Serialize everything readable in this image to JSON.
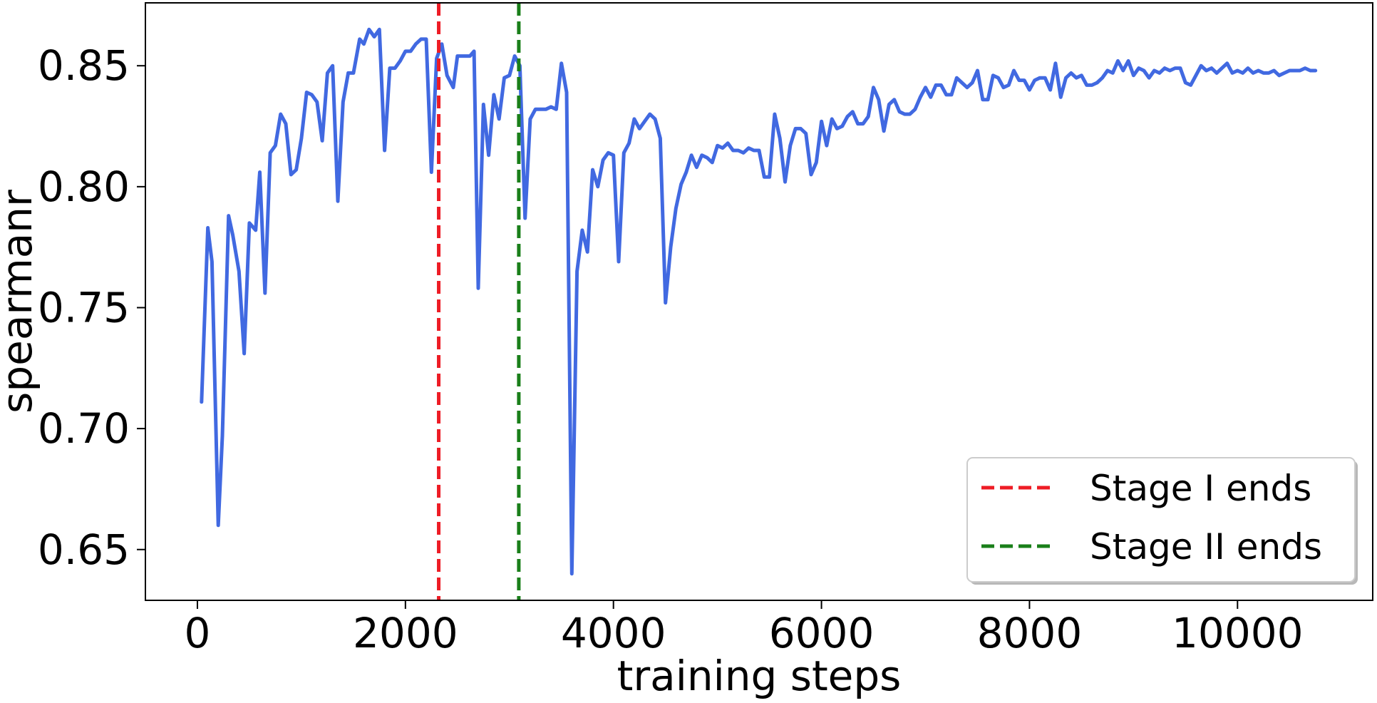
{
  "chart_data": {
    "type": "line",
    "title": "",
    "xlabel": "training steps",
    "ylabel": "spearmanr",
    "xlim": [
      -500,
      11300
    ],
    "ylim": [
      0.629,
      0.876
    ],
    "x_ticks": [
      0,
      2000,
      4000,
      6000,
      8000,
      10000
    ],
    "x_tick_labels": [
      "0",
      "2000",
      "4000",
      "6000",
      "8000",
      "10000"
    ],
    "y_ticks": [
      0.65,
      0.7,
      0.75,
      0.8,
      0.85
    ],
    "y_tick_labels": [
      "0.65",
      "0.70",
      "0.75",
      "0.80",
      "0.85"
    ],
    "grid": false,
    "legend_position": "bottom-right",
    "series": [
      {
        "color": "#4169E1",
        "points": [
          [
            40,
            0.711
          ],
          [
            100,
            0.783
          ],
          [
            140,
            0.769
          ],
          [
            200,
            0.66
          ],
          [
            240,
            0.697
          ],
          [
            300,
            0.788
          ],
          [
            340,
            0.78
          ],
          [
            400,
            0.765
          ],
          [
            450,
            0.731
          ],
          [
            500,
            0.785
          ],
          [
            560,
            0.782
          ],
          [
            600,
            0.806
          ],
          [
            650,
            0.756
          ],
          [
            700,
            0.814
          ],
          [
            750,
            0.817
          ],
          [
            800,
            0.83
          ],
          [
            850,
            0.826
          ],
          [
            900,
            0.805
          ],
          [
            950,
            0.807
          ],
          [
            1000,
            0.82
          ],
          [
            1050,
            0.839
          ],
          [
            1100,
            0.838
          ],
          [
            1150,
            0.835
          ],
          [
            1200,
            0.819
          ],
          [
            1250,
            0.847
          ],
          [
            1300,
            0.85
          ],
          [
            1350,
            0.794
          ],
          [
            1400,
            0.835
          ],
          [
            1450,
            0.847
          ],
          [
            1500,
            0.847
          ],
          [
            1560,
            0.861
          ],
          [
            1600,
            0.859
          ],
          [
            1650,
            0.865
          ],
          [
            1700,
            0.862
          ],
          [
            1750,
            0.865
          ],
          [
            1800,
            0.815
          ],
          [
            1850,
            0.849
          ],
          [
            1900,
            0.849
          ],
          [
            1950,
            0.852
          ],
          [
            2000,
            0.856
          ],
          [
            2050,
            0.856
          ],
          [
            2100,
            0.859
          ],
          [
            2150,
            0.861
          ],
          [
            2200,
            0.861
          ],
          [
            2250,
            0.806
          ],
          [
            2300,
            0.853
          ],
          [
            2350,
            0.859
          ],
          [
            2400,
            0.846
          ],
          [
            2460,
            0.841
          ],
          [
            2500,
            0.854
          ],
          [
            2560,
            0.854
          ],
          [
            2620,
            0.854
          ],
          [
            2660,
            0.856
          ],
          [
            2700,
            0.758
          ],
          [
            2750,
            0.834
          ],
          [
            2800,
            0.813
          ],
          [
            2850,
            0.838
          ],
          [
            2900,
            0.828
          ],
          [
            2950,
            0.845
          ],
          [
            3000,
            0.846
          ],
          [
            3050,
            0.854
          ],
          [
            3100,
            0.85
          ],
          [
            3150,
            0.787
          ],
          [
            3200,
            0.828
          ],
          [
            3250,
            0.832
          ],
          [
            3300,
            0.832
          ],
          [
            3350,
            0.832
          ],
          [
            3400,
            0.833
          ],
          [
            3450,
            0.832
          ],
          [
            3500,
            0.851
          ],
          [
            3550,
            0.839
          ],
          [
            3600,
            0.64
          ],
          [
            3650,
            0.765
          ],
          [
            3700,
            0.782
          ],
          [
            3750,
            0.773
          ],
          [
            3800,
            0.807
          ],
          [
            3850,
            0.8
          ],
          [
            3900,
            0.811
          ],
          [
            3950,
            0.814
          ],
          [
            4000,
            0.813
          ],
          [
            4050,
            0.769
          ],
          [
            4100,
            0.814
          ],
          [
            4150,
            0.818
          ],
          [
            4200,
            0.828
          ],
          [
            4250,
            0.824
          ],
          [
            4300,
            0.827
          ],
          [
            4350,
            0.83
          ],
          [
            4400,
            0.828
          ],
          [
            4450,
            0.82
          ],
          [
            4500,
            0.752
          ],
          [
            4550,
            0.775
          ],
          [
            4600,
            0.791
          ],
          [
            4650,
            0.801
          ],
          [
            4700,
            0.806
          ],
          [
            4750,
            0.813
          ],
          [
            4800,
            0.808
          ],
          [
            4850,
            0.813
          ],
          [
            4900,
            0.812
          ],
          [
            4950,
            0.81
          ],
          [
            5000,
            0.817
          ],
          [
            5050,
            0.816
          ],
          [
            5100,
            0.818
          ],
          [
            5150,
            0.815
          ],
          [
            5200,
            0.815
          ],
          [
            5250,
            0.814
          ],
          [
            5300,
            0.816
          ],
          [
            5350,
            0.815
          ],
          [
            5400,
            0.815
          ],
          [
            5450,
            0.804
          ],
          [
            5500,
            0.804
          ],
          [
            5550,
            0.83
          ],
          [
            5600,
            0.82
          ],
          [
            5650,
            0.802
          ],
          [
            5700,
            0.817
          ],
          [
            5750,
            0.824
          ],
          [
            5800,
            0.824
          ],
          [
            5850,
            0.822
          ],
          [
            5900,
            0.805
          ],
          [
            5950,
            0.81
          ],
          [
            6000,
            0.827
          ],
          [
            6050,
            0.817
          ],
          [
            6100,
            0.828
          ],
          [
            6150,
            0.824
          ],
          [
            6200,
            0.825
          ],
          [
            6250,
            0.829
          ],
          [
            6300,
            0.831
          ],
          [
            6350,
            0.826
          ],
          [
            6400,
            0.826
          ],
          [
            6450,
            0.829
          ],
          [
            6500,
            0.841
          ],
          [
            6550,
            0.836
          ],
          [
            6600,
            0.823
          ],
          [
            6650,
            0.834
          ],
          [
            6700,
            0.836
          ],
          [
            6750,
            0.831
          ],
          [
            6800,
            0.83
          ],
          [
            6850,
            0.83
          ],
          [
            6900,
            0.832
          ],
          [
            6950,
            0.837
          ],
          [
            7000,
            0.841
          ],
          [
            7050,
            0.837
          ],
          [
            7100,
            0.842
          ],
          [
            7150,
            0.842
          ],
          [
            7200,
            0.838
          ],
          [
            7250,
            0.838
          ],
          [
            7300,
            0.845
          ],
          [
            7350,
            0.843
          ],
          [
            7400,
            0.841
          ],
          [
            7450,
            0.843
          ],
          [
            7500,
            0.848
          ],
          [
            7550,
            0.836
          ],
          [
            7600,
            0.836
          ],
          [
            7650,
            0.846
          ],
          [
            7700,
            0.845
          ],
          [
            7750,
            0.841
          ],
          [
            7800,
            0.842
          ],
          [
            7850,
            0.848
          ],
          [
            7900,
            0.844
          ],
          [
            7950,
            0.844
          ],
          [
            8000,
            0.84
          ],
          [
            8050,
            0.844
          ],
          [
            8100,
            0.845
          ],
          [
            8150,
            0.845
          ],
          [
            8200,
            0.84
          ],
          [
            8250,
            0.851
          ],
          [
            8300,
            0.837
          ],
          [
            8350,
            0.845
          ],
          [
            8400,
            0.847
          ],
          [
            8450,
            0.845
          ],
          [
            8500,
            0.846
          ],
          [
            8550,
            0.842
          ],
          [
            8600,
            0.842
          ],
          [
            8650,
            0.843
          ],
          [
            8700,
            0.845
          ],
          [
            8750,
            0.848
          ],
          [
            8800,
            0.847
          ],
          [
            8850,
            0.852
          ],
          [
            8900,
            0.848
          ],
          [
            8950,
            0.852
          ],
          [
            9000,
            0.846
          ],
          [
            9050,
            0.849
          ],
          [
            9100,
            0.848
          ],
          [
            9150,
            0.845
          ],
          [
            9200,
            0.848
          ],
          [
            9250,
            0.847
          ],
          [
            9300,
            0.849
          ],
          [
            9350,
            0.848
          ],
          [
            9400,
            0.849
          ],
          [
            9450,
            0.849
          ],
          [
            9500,
            0.843
          ],
          [
            9550,
            0.842
          ],
          [
            9600,
            0.846
          ],
          [
            9650,
            0.85
          ],
          [
            9700,
            0.848
          ],
          [
            9750,
            0.849
          ],
          [
            9800,
            0.847
          ],
          [
            9850,
            0.849
          ],
          [
            9900,
            0.851
          ],
          [
            9950,
            0.847
          ],
          [
            10000,
            0.848
          ],
          [
            10050,
            0.847
          ],
          [
            10100,
            0.849
          ],
          [
            10150,
            0.847
          ],
          [
            10200,
            0.848
          ],
          [
            10250,
            0.847
          ],
          [
            10300,
            0.847
          ],
          [
            10350,
            0.848
          ],
          [
            10400,
            0.846
          ],
          [
            10450,
            0.847
          ],
          [
            10500,
            0.848
          ],
          [
            10550,
            0.848
          ],
          [
            10600,
            0.848
          ],
          [
            10650,
            0.849
          ],
          [
            10700,
            0.848
          ],
          [
            10750,
            0.848
          ]
        ]
      }
    ],
    "vlines": [
      {
        "name": "Stage I ends",
        "x": 2320,
        "color": "#ee1c25",
        "style": "dashed"
      },
      {
        "name": "Stage II ends",
        "x": 3090,
        "color": "#1a7f1a",
        "style": "dashed"
      }
    ]
  }
}
